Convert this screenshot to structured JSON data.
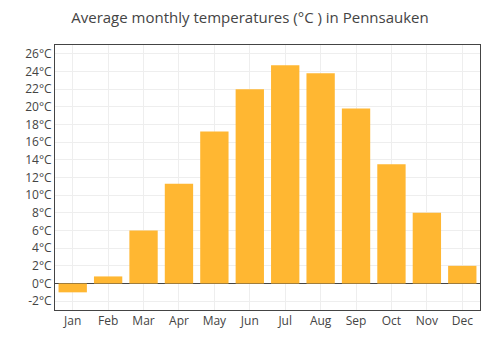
{
  "chart_data": {
    "type": "bar",
    "title": "Average monthly temperatures (°C ) in Pennsauken",
    "categories": [
      "Jan",
      "Feb",
      "Mar",
      "Apr",
      "May",
      "Jun",
      "Jul",
      "Aug",
      "Sep",
      "Oct",
      "Nov",
      "Dec"
    ],
    "values": [
      -1.0,
      0.8,
      6.0,
      11.3,
      17.2,
      22.0,
      24.7,
      23.8,
      19.8,
      13.5,
      8.0,
      2.0
    ],
    "color": "#FFB732",
    "ylim": [
      -3,
      27
    ],
    "yticks": [
      {
        "value": -2,
        "label": "-2°C"
      },
      {
        "value": 0,
        "label": "0°C"
      },
      {
        "value": 2,
        "label": "2°C"
      },
      {
        "value": 4,
        "label": "4°C"
      },
      {
        "value": 6,
        "label": "6°C"
      },
      {
        "value": 8,
        "label": "8°C"
      },
      {
        "value": 10,
        "label": "10°C"
      },
      {
        "value": 12,
        "label": "12°C"
      },
      {
        "value": 14,
        "label": "14°C"
      },
      {
        "value": 16,
        "label": "16°C"
      },
      {
        "value": 18,
        "label": "18°C"
      },
      {
        "value": 20,
        "label": "20°C"
      },
      {
        "value": 22,
        "label": "22°C"
      },
      {
        "value": 24,
        "label": "24°C"
      },
      {
        "value": 26,
        "label": "26°C"
      }
    ],
    "grid": true
  }
}
